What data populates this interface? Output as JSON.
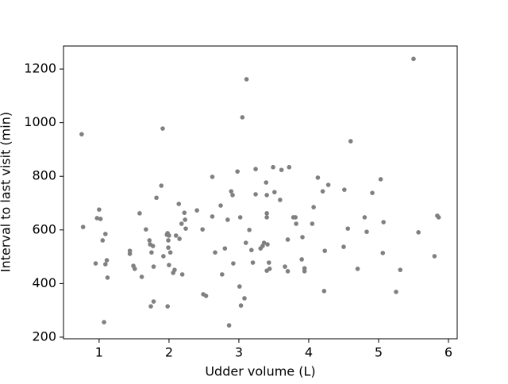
{
  "chart_data": {
    "type": "scatter",
    "xlabel": "Udder volume (L)",
    "ylabel": "Interval to last visit (min)",
    "color": "#808080",
    "xlim": [
      0.49,
      6.125
    ],
    "ylim": [
      194,
      1286
    ],
    "xticks": [
      1,
      2,
      3,
      4,
      5,
      6
    ],
    "yticks": [
      200,
      400,
      600,
      800,
      1000,
      1200
    ],
    "x": [
      0.75,
      0.77,
      0.95,
      0.97,
      1.0,
      1.02,
      1.05,
      1.07,
      1.09,
      1.09,
      1.11,
      1.12,
      1.44,
      1.44,
      1.49,
      1.51,
      1.58,
      1.61,
      1.67,
      1.72,
      1.73,
      1.74,
      1.75,
      1.77,
      1.78,
      1.78,
      1.82,
      1.89,
      1.91,
      1.92,
      1.97,
      1.98,
      1.98,
      1.99,
      1.99,
      2.0,
      2.0,
      2.02,
      2.06,
      2.08,
      2.1,
      2.14,
      2.15,
      2.18,
      2.19,
      2.22,
      2.24,
      2.23,
      2.4,
      2.48,
      2.49,
      2.53,
      2.62,
      2.62,
      2.66,
      2.74,
      2.76,
      2.8,
      2.84,
      2.86,
      2.89,
      2.91,
      2.92,
      2.98,
      3.01,
      3.02,
      3.03,
      3.05,
      3.08,
      3.1,
      3.11,
      3.15,
      3.18,
      3.2,
      3.24,
      3.24,
      3.31,
      3.34,
      3.36,
      3.39,
      3.4,
      3.4,
      3.4,
      3.4,
      3.41,
      3.43,
      3.44,
      3.49,
      3.51,
      3.59,
      3.61,
      3.66,
      3.7,
      3.7,
      3.72,
      3.78,
      3.81,
      3.82,
      3.9,
      3.91,
      3.94,
      3.94,
      4.05,
      4.07,
      4.13,
      4.2,
      4.22,
      4.23,
      4.28,
      4.5,
      4.51,
      4.56,
      4.6,
      4.7,
      4.8,
      4.83,
      4.91,
      5.03,
      5.06,
      5.07,
      5.25,
      5.31,
      5.5,
      5.57,
      5.8,
      5.84,
      5.86
    ],
    "y": [
      957,
      611,
      475,
      644,
      676,
      641,
      561,
      256,
      585,
      472,
      487,
      422,
      522,
      511,
      466,
      455,
      662,
      425,
      602,
      561,
      546,
      315,
      516,
      540,
      333,
      463,
      720,
      765,
      978,
      502,
      582,
      315,
      588,
      534,
      561,
      579,
      469,
      516,
      440,
      451,
      579,
      697,
      567,
      623,
      434,
      664,
      605,
      638,
      673,
      602,
      360,
      354,
      798,
      650,
      516,
      691,
      434,
      531,
      638,
      244,
      744,
      730,
      475,
      818,
      389,
      647,
      318,
      1020,
      345,
      552,
      1162,
      600,
      525,
      478,
      733,
      827,
      531,
      540,
      552,
      777,
      662,
      730,
      647,
      448,
      546,
      478,
      455,
      834,
      741,
      712,
      824,
      463,
      564,
      446,
      834,
      647,
      647,
      623,
      490,
      573,
      457,
      446,
      623,
      685,
      795,
      744,
      372,
      522,
      768,
      537,
      750,
      605,
      931,
      455,
      647,
      593,
      738,
      789,
      514,
      629,
      369,
      451,
      1238,
      591,
      502,
      653,
      647
    ]
  }
}
